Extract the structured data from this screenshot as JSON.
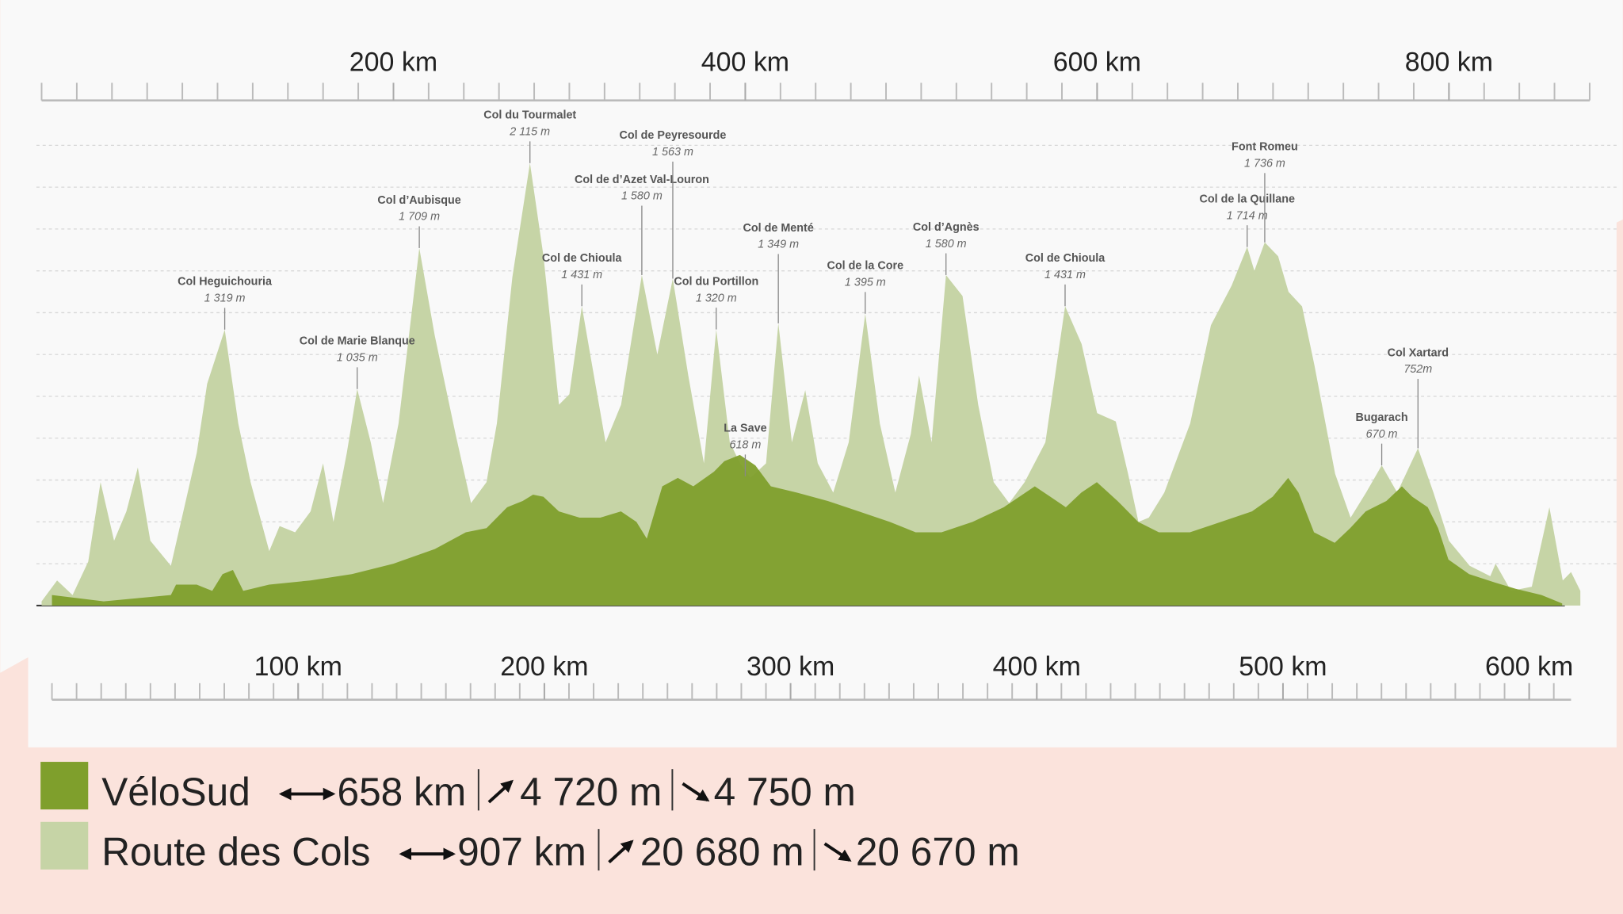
{
  "chart_data": {
    "type": "area",
    "xlim": [
      0,
      880
    ],
    "xticks": [
      {
        "value": 200,
        "label": "200 km"
      },
      {
        "value": 400,
        "label": "400 km"
      },
      {
        "value": 600,
        "label": "600 km"
      },
      {
        "value": 800,
        "label": "800 km"
      }
    ],
    "xminorticks": [
      0,
      20,
      40,
      60,
      80,
      100,
      120,
      140,
      160,
      180,
      200,
      220,
      240,
      260,
      280,
      300,
      320,
      340,
      360,
      380,
      400,
      420,
      440,
      460,
      480,
      500,
      520,
      540,
      560,
      580,
      600,
      620,
      640,
      660,
      680,
      700,
      720,
      740,
      760,
      780,
      800,
      820,
      840,
      860,
      880
    ],
    "x2lim": [
      0,
      617
    ],
    "x2ticks": [
      {
        "value": 100,
        "label": "100 km"
      },
      {
        "value": 200,
        "label": "200 km"
      },
      {
        "value": 300,
        "label": "300 km"
      },
      {
        "value": 400,
        "label": "400 km"
      },
      {
        "value": 500,
        "label": "500 km"
      },
      {
        "value": 600,
        "label": "600 km"
      }
    ],
    "x2minorticks": [
      0,
      10,
      20,
      30,
      40,
      50,
      60,
      70,
      80,
      90,
      100,
      110,
      120,
      130,
      140,
      150,
      160,
      170,
      180,
      190,
      200,
      210,
      220,
      230,
      240,
      250,
      260,
      270,
      280,
      290,
      300,
      310,
      320,
      330,
      340,
      350,
      360,
      370,
      380,
      390,
      400,
      410,
      420,
      430,
      440,
      450,
      460,
      470,
      480,
      490,
      500,
      510,
      520,
      530,
      540,
      550,
      560,
      570,
      580,
      590,
      600,
      610
    ],
    "ylim": [
      0,
      2400
    ],
    "yticks": [
      0,
      200,
      400,
      600,
      800,
      1000,
      1200,
      1400,
      1600,
      1800,
      2000,
      2200
    ],
    "grid": true,
    "series": [
      {
        "name": "VéloSud",
        "color": "#7f9f2c",
        "axis": "x2",
        "distance": "658 km",
        "ascent": "4 720 m",
        "descent": "4 750 m",
        "x": [
          0,
          21,
          48.3,
          50.4,
          58.8,
          65.1,
          69.3,
          73.5,
          77.7,
          88.2,
          105,
          121.8,
          138.7,
          155.5,
          168.1,
          176.5,
          184.9,
          191.2,
          195.4,
          199.6,
          205.9,
          214.3,
          222.7,
          231.1,
          237.4,
          241.6,
          247.9,
          254.2,
          260.5,
          268.9,
          273.1,
          279.4,
          285.7,
          292,
          302.5,
          315.1,
          327.7,
          340.3,
          350.8,
          361.3,
          373.9,
          386.6,
          399.2,
          405.5,
          411.8,
          418.1,
          424.4,
          432.8,
          441.2,
          449.6,
          462.2,
          474.8,
          487.4,
          495.8,
          502.1,
          506.3,
          512.6,
          521,
          527.3,
          533.6,
          542,
          548.3,
          552.5,
          558.8,
          563,
          567.2,
          575.6,
          586.1,
          594.5,
          605,
          613.4
        ],
        "values": [
          50,
          20,
          50,
          100,
          100,
          70,
          150,
          170,
          70,
          100,
          120,
          150,
          200,
          270,
          350,
          370,
          470,
          500,
          530,
          520,
          450,
          420,
          420,
          450,
          400,
          320,
          570,
          610,
          570,
          640,
          690,
          720,
          670,
          570,
          540,
          500,
          450,
          400,
          350,
          350,
          400,
          470,
          570,
          520,
          470,
          540,
          590,
          500,
          400,
          350,
          350,
          400,
          450,
          520,
          610,
          540,
          350,
          300,
          370,
          450,
          500,
          570,
          520,
          470,
          370,
          220,
          150,
          110,
          80,
          50,
          10
        ]
      },
      {
        "name": "Route des Cols",
        "color": "#c6d4a6",
        "axis": "x",
        "distance": "907 km",
        "ascent": "20 680 m",
        "descent": "20 670 m",
        "x": [
          0,
          8.8,
          17.6,
          26.5,
          33.5,
          41.2,
          48.2,
          54.7,
          61.8,
          73.5,
          88.2,
          94.1,
          104.1,
          111.8,
          118.8,
          129.4,
          135.3,
          144.1,
          152.9,
          160,
          165.9,
          173.5,
          179.4,
          187.1,
          194.1,
          202.9,
          214.7,
          223.5,
          235.3,
          244.1,
          252.9,
          258.8,
          267.6,
          277.6,
          285.3,
          294.1,
          300,
          307.1,
          312.9,
          320.6,
          329.4,
          341.2,
          350,
          358.8,
          367.6,
          376.5,
          383.5,
          391.2,
          397.1,
          402.9,
          411.8,
          418.8,
          426.5,
          434.1,
          441.2,
          450,
          458.8,
          468.2,
          476.5,
          485.3,
          494.1,
          498.8,
          505.9,
          514.1,
          523.5,
          532.4,
          541.2,
          550,
          558.8,
          570.6,
          581.8,
          591.2,
          600,
          610.6,
          617.6,
          623.5,
          629.4,
          638.2,
          652.9,
          664.7,
          676.5,
          685.3,
          689.4,
          695.3,
          702.9,
          708.8,
          716.5,
          723.5,
          735.3,
          744.1,
          752.9,
          761.8,
          770.6,
          782.4,
          791.2,
          800,
          811.8,
          823.5,
          826.5,
          835.3,
          847.1,
          857.1,
          864.7,
          869.4,
          874.7
        ],
        "values": [
          20,
          120,
          50,
          210,
          590,
          310,
          450,
          660,
          310,
          190,
          730,
          1060,
          1319,
          870,
          590,
          260,
          380,
          350,
          450,
          680,
          400,
          730,
          1035,
          780,
          490,
          870,
          1709,
          1290,
          820,
          490,
          590,
          870,
          1570,
          2115,
          1670,
          960,
          1010,
          1431,
          1150,
          780,
          960,
          1580,
          1200,
          1563,
          1100,
          680,
          1320,
          780,
          680,
          610,
          680,
          1349,
          780,
          1030,
          680,
          540,
          780,
          1395,
          870,
          540,
          820,
          1100,
          780,
          1580,
          1480,
          960,
          590,
          490,
          590,
          780,
          1431,
          1250,
          920,
          880,
          630,
          400,
          420,
          540,
          870,
          1340,
          1530,
          1714,
          1600,
          1736,
          1670,
          1500,
          1430,
          1150,
          630,
          420,
          540,
          670,
          540,
          752,
          540,
          310,
          190,
          140,
          200,
          70,
          90,
          470,
          120,
          160,
          70
        ]
      }
    ],
    "annotations": [
      {
        "text": "Col Heguichouria",
        "label": "1 319 m",
        "x": 104.1,
        "value": 1319
      },
      {
        "text": "Col de Marie Blanque",
        "label": "1 035 m",
        "x": 179.4,
        "value": 1035
      },
      {
        "text": "Col d’Aubisque",
        "label": "1 709 m",
        "x": 214.7,
        "value": 1709
      },
      {
        "text": "Col du Tourmalet",
        "label": "2 115 m",
        "x": 277.6,
        "value": 2115
      },
      {
        "text": "Col de Chioula",
        "label": "1 431 m",
        "x": 307.1,
        "value": 1431
      },
      {
        "text": "Col de d’Azet Val-Louron",
        "label": "1 580 m",
        "x": 341.2,
        "value": 1580
      },
      {
        "text": "Col de Peyresourde",
        "label": "1 563 m",
        "x": 358.8,
        "value": 1563
      },
      {
        "text": "Col du Portillon",
        "label": "1 320 m",
        "x": 383.5,
        "value": 1320
      },
      {
        "text": "La Save",
        "label": "618 m",
        "x": 400,
        "value": 618
      },
      {
        "text": "Col de Menté",
        "label": "1 349 m",
        "x": 418.8,
        "value": 1349
      },
      {
        "text": "Col de la Core",
        "label": "1 395 m",
        "x": 468.2,
        "value": 1395
      },
      {
        "text": "Col d’Agnès",
        "label": "1 580 m",
        "x": 514.1,
        "value": 1580
      },
      {
        "text": "Col de Chioula",
        "label": "1 431 m",
        "x": 581.8,
        "value": 1431
      },
      {
        "text": "Col de la Quillane",
        "label": "1 714 m",
        "x": 685.3,
        "value": 1714
      },
      {
        "text": "Font Romeu",
        "label": "1 736 m",
        "x": 695.3,
        "value": 1736
      },
      {
        "text": "Bugarach",
        "label": "670 m",
        "x": 761.8,
        "value": 670
      },
      {
        "text": "Col Xartard",
        "label": "752m",
        "x": 782.4,
        "value": 752
      }
    ]
  }
}
